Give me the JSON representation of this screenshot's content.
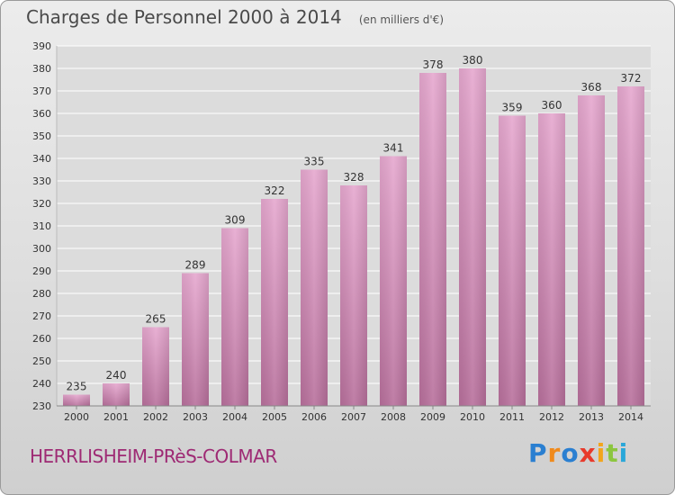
{
  "title": "Charges de Personnel 2000 à 2014",
  "unit_note": "(en milliers d'€)",
  "place_name": "HERRLISHEIM-PRèS-COLMAR",
  "logo": [
    "P",
    "r",
    "o",
    "x",
    "i",
    "t",
    "i"
  ],
  "colors": {
    "bar_top": "#e6a8cf",
    "bar_bottom": "#b8709c",
    "place": "#9e2a74",
    "grid": "#ffffff",
    "axis_text": "#333333"
  },
  "chart_data": {
    "type": "bar",
    "title": "Charges de Personnel 2000 à 2014",
    "categories": [
      "2000",
      "2001",
      "2002",
      "2003",
      "2004",
      "2005",
      "2006",
      "2007",
      "2008",
      "2009",
      "2010",
      "2011",
      "2012",
      "2013",
      "2014"
    ],
    "values": [
      235,
      240,
      265,
      289,
      309,
      322,
      335,
      328,
      341,
      378,
      380,
      359,
      360,
      368,
      372
    ],
    "ylim": [
      230,
      390
    ],
    "yticks": [
      230,
      240,
      250,
      260,
      270,
      280,
      290,
      300,
      310,
      320,
      330,
      340,
      350,
      360,
      370,
      380,
      390
    ],
    "grid": true,
    "xlabel": "",
    "ylabel": ""
  }
}
